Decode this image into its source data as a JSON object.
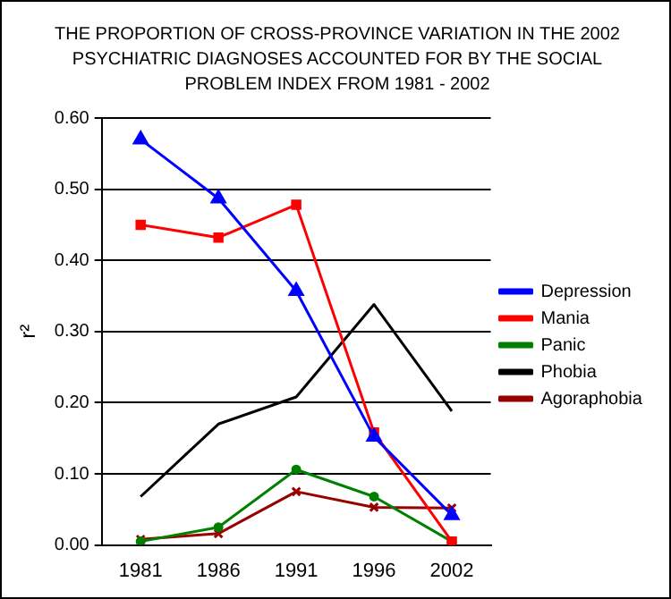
{
  "chart_data": {
    "type": "line",
    "title": "THE PROPORTION OF CROSS-PROVINCE VARIATION IN THE 2002 PSYCHIATRIC DIAGNOSES ACCOUNTED FOR BY THE SOCIAL PROBLEM INDEX FROM 1981 - 2002",
    "ylabel": "r²",
    "categories": [
      "1981",
      "1986",
      "1991",
      "1996",
      "2002"
    ],
    "series": [
      {
        "name": "Depression",
        "color": "#0000ff",
        "marker": "triangle",
        "values": [
          0.57,
          0.487,
          0.357,
          0.152,
          0.042
        ]
      },
      {
        "name": "Mania",
        "color": "#ff0000",
        "marker": "square",
        "values": [
          0.45,
          0.432,
          0.478,
          0.158,
          0.005
        ]
      },
      {
        "name": "Panic",
        "color": "#008000",
        "marker": "circle",
        "values": [
          0.005,
          0.025,
          0.106,
          0.068,
          0.005
        ]
      },
      {
        "name": "Phobia",
        "color": "#000000",
        "marker": "none",
        "values": [
          0.068,
          0.17,
          0.208,
          0.338,
          0.188
        ]
      },
      {
        "name": "Agoraphobia",
        "color": "#990000",
        "marker": "cross",
        "values": [
          0.008,
          0.016,
          0.075,
          0.053,
          0.052
        ]
      }
    ],
    "ylim": [
      0,
      0.6
    ],
    "yticks": [
      {
        "value": 0,
        "label": "0.00"
      },
      {
        "value": 0.1,
        "label": "0.10"
      },
      {
        "value": 0.2,
        "label": "0.20"
      },
      {
        "value": 0.3,
        "label": "0.30"
      },
      {
        "value": 0.4,
        "label": "0.40"
      },
      {
        "value": 0.5,
        "label": "0.50"
      },
      {
        "value": 0.6,
        "label": "0.60"
      }
    ],
    "grid": "y",
    "legend": "right"
  }
}
